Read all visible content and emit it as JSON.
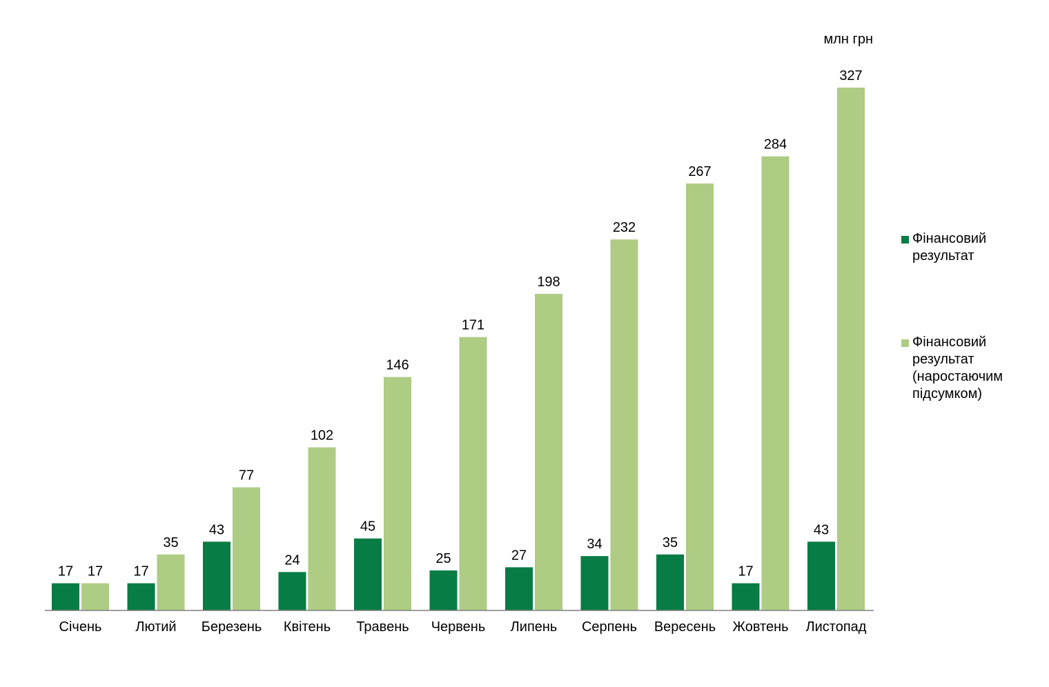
{
  "chart_data": {
    "type": "bar",
    "unit": "млн грн",
    "categories": [
      "Січень",
      "Лютий",
      "Березень",
      "Квітень",
      "Травень",
      "Червень",
      "Липень",
      "Серпень",
      "Вересень",
      "Жовтень",
      "Листопад"
    ],
    "series": [
      {
        "name": "Фінансовий результат",
        "color": "#077c45",
        "values": [
          17,
          17,
          43,
          24,
          45,
          25,
          27,
          34,
          35,
          17,
          43
        ]
      },
      {
        "name": "Фінансовий результат (наростаючим підсумком)",
        "color": "#aecc84",
        "values": [
          17,
          35,
          77,
          102,
          146,
          171,
          198,
          232,
          267,
          284,
          327
        ]
      }
    ],
    "ylim": [
      0,
      327
    ],
    "grid": false,
    "legend_position": "right"
  }
}
